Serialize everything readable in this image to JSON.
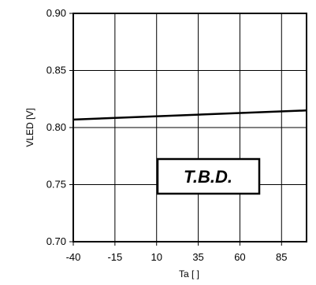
{
  "chart_data": {
    "type": "line",
    "xlabel": "Ta [   ]",
    "ylabel": "VLED [V]",
    "xlim": [
      -40,
      100
    ],
    "ylim": [
      0.7,
      0.9
    ],
    "x_ticks": [
      -40,
      -15,
      10,
      35,
      60,
      85
    ],
    "x_tick_labels": [
      "-40",
      "-15",
      "10",
      "35",
      "60",
      "85"
    ],
    "y_ticks": [
      0.7,
      0.75,
      0.8,
      0.85,
      0.9
    ],
    "y_tick_labels": [
      "0.70",
      "0.75",
      "0.80",
      "0.85",
      "0.90"
    ],
    "grid": true,
    "series": [
      {
        "x": [
          -40,
          100
        ],
        "y": [
          0.807,
          0.815
        ]
      }
    ],
    "annotation": "T.B.D."
  }
}
